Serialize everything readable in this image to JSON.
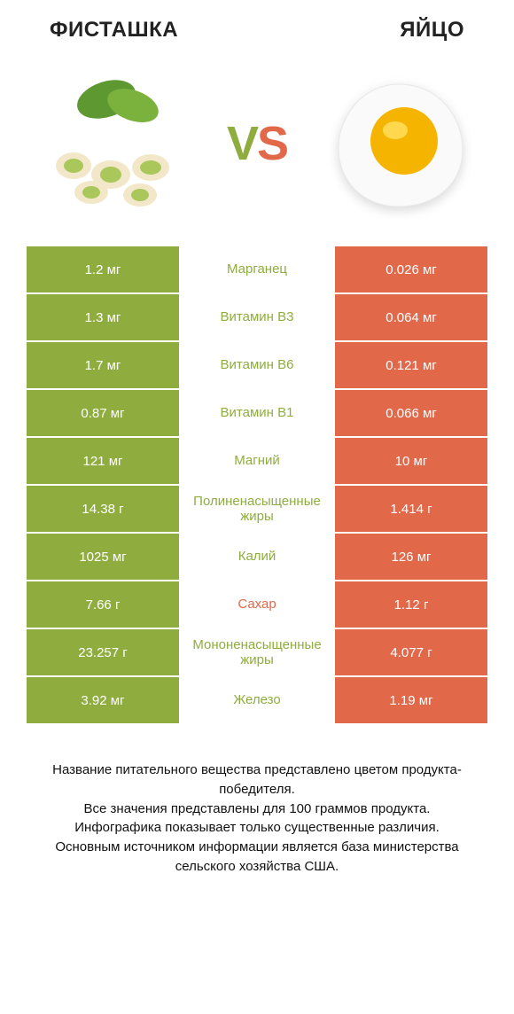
{
  "colors": {
    "left": "#8fad3e",
    "right": "#e2684a"
  },
  "header": {
    "left_title": "ФИСТАШКА",
    "right_title": "ЯЙЦО"
  },
  "vs": {
    "v": "V",
    "s": "S"
  },
  "rows": [
    {
      "left": "1.2 мг",
      "label": "Марганец",
      "right": "0.026 мг",
      "winner": "left"
    },
    {
      "left": "1.3 мг",
      "label": "Витамин B3",
      "right": "0.064 мг",
      "winner": "left"
    },
    {
      "left": "1.7 мг",
      "label": "Витамин B6",
      "right": "0.121 мг",
      "winner": "left"
    },
    {
      "left": "0.87 мг",
      "label": "Витамин B1",
      "right": "0.066 мг",
      "winner": "left"
    },
    {
      "left": "121 мг",
      "label": "Магний",
      "right": "10 мг",
      "winner": "left"
    },
    {
      "left": "14.38 г",
      "label": "Полиненасыщенные жиры",
      "right": "1.414 г",
      "winner": "left"
    },
    {
      "left": "1025 мг",
      "label": "Калий",
      "right": "126 мг",
      "winner": "left"
    },
    {
      "left": "7.66 г",
      "label": "Сахар",
      "right": "1.12 г",
      "winner": "right"
    },
    {
      "left": "23.257 г",
      "label": "Мононенасыщенные жиры",
      "right": "4.077 г",
      "winner": "left"
    },
    {
      "left": "3.92 мг",
      "label": "Железо",
      "right": "1.19 мг",
      "winner": "left"
    }
  ],
  "footnote": "Название питательного вещества представлено цветом продукта-победителя.\nВсе значения представлены для 100 граммов продукта.\nИнфографика показывает только существенные различия.\nОсновным источником информации является база министерства сельского хозяйства США."
}
